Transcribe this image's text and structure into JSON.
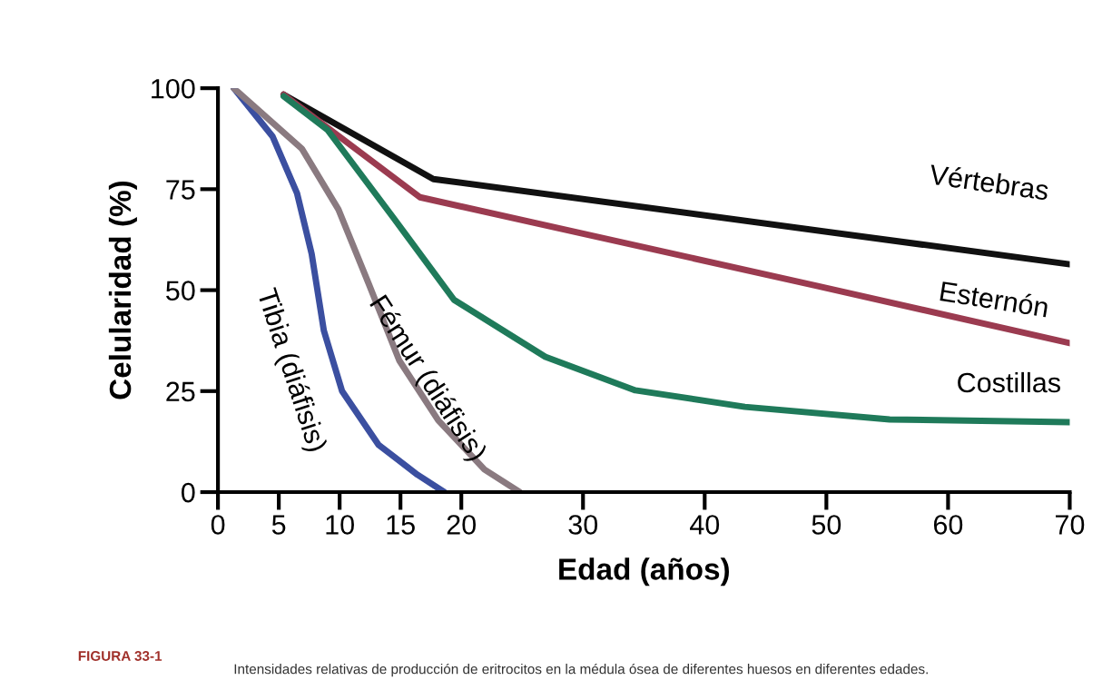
{
  "chart_data": {
    "type": "line",
    "xlabel": "Edad (años)",
    "ylabel": "Celularidad (%)",
    "xlim": [
      0,
      70
    ],
    "xticks": [
      0,
      5,
      10,
      15,
      20,
      30,
      40,
      50,
      60,
      70
    ],
    "ylim": [
      0,
      100
    ],
    "yticks": [
      0,
      25,
      50,
      75,
      100
    ],
    "grid": false,
    "legend": false,
    "marker": "none",
    "line_style": "solid",
    "series": [
      {
        "name": "Vértebras",
        "color": "#111111",
        "x": [
          5.4,
          17.7,
          70
        ],
        "values": [
          98.4,
          77.5,
          56.4
        ]
      },
      {
        "name": "Esternón",
        "color": "#9b3b50",
        "x": [
          5.4,
          16.6,
          49.3,
          70
        ],
        "values": [
          98.4,
          73,
          51,
          36.9
        ]
      },
      {
        "name": "Costillas",
        "color": "#1f7a5a",
        "x": [
          5.4,
          9,
          14.4,
          19.4,
          26.9,
          34.3,
          43.3,
          55.2,
          70
        ],
        "values": [
          98,
          89.7,
          68,
          47.6,
          33.5,
          25.2,
          21.1,
          18,
          17.3
        ]
      },
      {
        "name": "Tibia (diáfisis)",
        "color": "#3b4fa0",
        "x": [
          1.3,
          4.5,
          6.5,
          7.7,
          8.7,
          10.2,
          13.2,
          16.4,
          18.6
        ],
        "values": [
          100,
          88,
          74,
          59,
          40,
          25,
          11.7,
          4.3,
          0
        ]
      },
      {
        "name": "Fémur (diáfisis)",
        "color": "#8a7a80",
        "x": [
          1.3,
          6.9,
          9.9,
          12.4,
          14.9,
          18.1,
          21.9,
          24.8
        ],
        "values": [
          100,
          85,
          70,
          51.5,
          32.6,
          17.8,
          5.6,
          0
        ]
      }
    ],
    "annotations": [
      "FIGURA 33-1",
      "Intensidades relativas de producción de eritrocitos en la médula ósea de diferentes huesos en diferentes edades."
    ]
  }
}
